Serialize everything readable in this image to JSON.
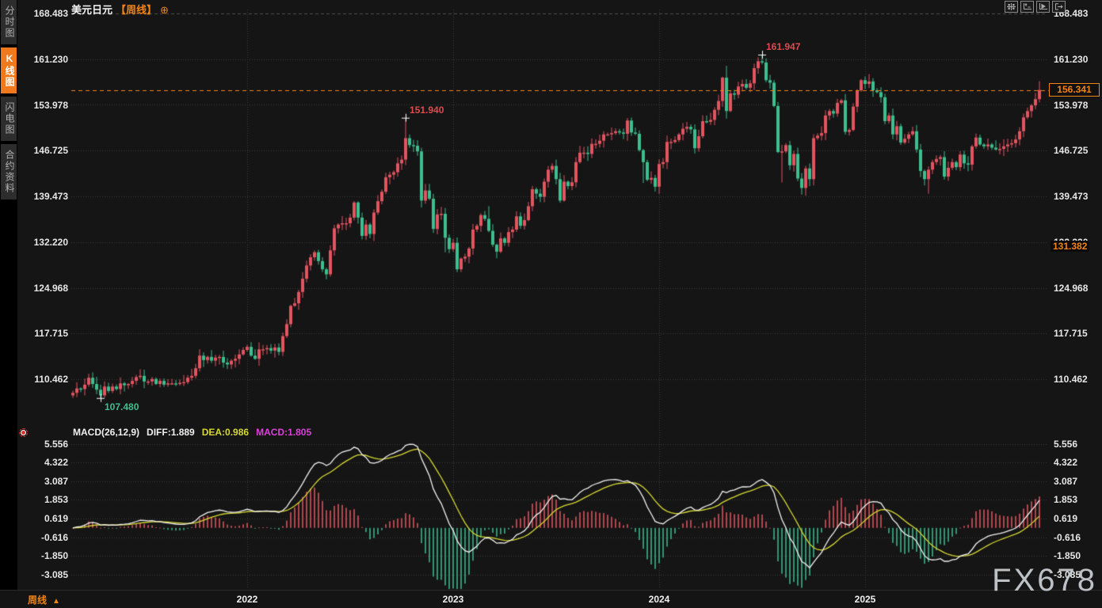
{
  "sidebar": {
    "tabs": [
      {
        "label": "分时图",
        "active": false
      },
      {
        "label": "K线图",
        "active": true
      },
      {
        "label": "闪电图",
        "active": false
      },
      {
        "label": "合约资料",
        "active": false
      }
    ]
  },
  "header": {
    "symbol": "美元日元",
    "period_tag": "【周线】",
    "add_icon": "⊕"
  },
  "toolbar": {
    "icons": [
      "pan-tool",
      "axis-zoom-tool",
      "autoscroll-tool",
      "exit-scale-tool"
    ]
  },
  "current_price": {
    "value": "156.341",
    "color": "#f08418"
  },
  "secondary_axis_badge": {
    "value": "131.382",
    "price": 131.382
  },
  "macd_header": {
    "title": "MACD(26,12,9)",
    "diff": "DIFF:1.889",
    "dea": "DEA:0.986",
    "macd": "MACD:1.805"
  },
  "bottom_bar": {
    "period_label": "周线",
    "arrow": "▲"
  },
  "watermark": "FX678",
  "chart_data": {
    "type": "candlestick",
    "title": "美元日元【周线】",
    "symbol": "USD/JPY",
    "period": "weekly",
    "price_axis_labels": [
      "168.483",
      "161.230",
      "153.978",
      "146.725",
      "139.473",
      "132.220",
      "124.968",
      "117.715",
      "110.462"
    ],
    "price_axis_top": 168.483,
    "price_axis_step": 7.2525,
    "current_price": 156.341,
    "colors": {
      "up": "#e25560",
      "down": "#3dbe8e",
      "grid": "#3a3a3a",
      "price_line": "#f08418"
    },
    "x_years": [
      {
        "label": "2022",
        "start_index": 44
      },
      {
        "label": "2023",
        "start_index": 96
      },
      {
        "label": "2024",
        "start_index": 148
      },
      {
        "label": "2025",
        "start_index": 200
      }
    ],
    "closes": [
      108.3,
      109.0,
      108.9,
      109.6,
      110.7,
      109.7,
      108.8,
      107.9,
      109.3,
      108.6,
      109.3,
      108.9,
      109.8,
      109.5,
      109.7,
      110.2,
      110.8,
      111.0,
      110.1,
      110.1,
      110.5,
      109.7,
      110.2,
      109.6,
      109.8,
      109.8,
      109.7,
      109.9,
      110.0,
      110.7,
      111.0,
      112.2,
      114.2,
      113.5,
      114.0,
      113.4,
      113.9,
      114.0,
      113.1,
      112.8,
      113.4,
      113.7,
      114.4,
      115.1,
      115.6,
      114.2,
      113.7,
      115.2,
      115.2,
      115.4,
      115.0,
      115.5,
      114.8,
      117.3,
      119.2,
      122.1,
      122.5,
      124.3,
      126.4,
      128.5,
      129.8,
      130.6,
      129.2,
      127.9,
      127.1,
      130.9,
      134.4,
      135.0,
      135.2,
      135.2,
      136.1,
      138.5,
      136.1,
      133.2,
      135.0,
      133.5,
      136.9,
      138.7,
      140.2,
      142.5,
      142.9,
      143.3,
      144.7,
      145.3,
      148.7,
      147.6,
      147.5,
      146.6,
      138.8,
      140.4,
      139.1,
      134.3,
      136.6,
      136.7,
      132.9,
      131.1,
      132.1,
      127.9,
      129.6,
      129.9,
      131.2,
      134.2,
      134.8,
      136.5,
      135.9,
      134.0,
      131.8,
      130.7,
      132.8,
      132.1,
      133.8,
      134.2,
      136.3,
      134.8,
      135.7,
      137.9,
      140.6,
      139.9,
      139.4,
      141.8,
      143.7,
      144.3,
      142.2,
      138.8,
      141.8,
      141.1,
      141.7,
      144.9,
      146.4,
      146.4,
      146.2,
      147.8,
      147.8,
      148.3,
      149.3,
      149.3,
      149.5,
      149.8,
      149.6,
      149.4,
      151.5,
      149.6,
      149.4,
      146.8,
      144.9,
      142.1,
      142.4,
      141.0,
      144.6,
      144.9,
      148.1,
      148.1,
      148.4,
      149.3,
      150.2,
      150.5,
      150.1,
      147.1,
      149.0,
      151.4,
      151.3,
      151.6,
      153.2,
      154.6,
      158.3,
      153.0,
      155.8,
      155.6,
      156.9,
      157.3,
      156.7,
      157.4,
      159.8,
      160.9,
      160.7,
      157.9,
      157.5,
      153.8,
      146.5,
      146.6,
      147.6,
      144.4,
      146.2,
      142.3,
      140.8,
      143.9,
      142.2,
      148.7,
      149.1,
      149.5,
      152.3,
      153.0,
      152.6,
      154.3,
      154.7,
      149.7,
      150.0,
      153.7,
      156.3,
      157.9,
      157.3,
      157.7,
      156.3,
      156.0,
      155.2,
      151.4,
      152.3,
      149.3,
      150.6,
      148.0,
      148.6,
      149.3,
      149.8,
      146.9,
      143.5,
      142.2,
      143.7,
      144.9,
      145.4,
      145.7,
      142.6,
      144.0,
      144.9,
      144.1,
      146.1,
      144.7,
      144.5,
      147.4,
      148.8,
      147.7,
      147.4,
      147.7,
      147.2,
      146.9,
      147.0,
      147.4,
      147.7,
      147.9,
      148.5,
      149.8,
      152.0,
      153.0,
      153.9,
      154.9,
      156.341
    ],
    "wick_overrides": {
      "7": {
        "l": 107.48
      },
      "84": {
        "h": 151.94
      },
      "88": {
        "l": 137.7
      },
      "94": {
        "l": 130.6
      },
      "97": {
        "l": 127.46
      },
      "105": {
        "h": 137.91
      },
      "107": {
        "l": 129.64
      },
      "140": {
        "h": 151.9
      },
      "144": {
        "l": 141.6
      },
      "147": {
        "l": 140.25
      },
      "164": {
        "h": 158.44
      },
      "165": {
        "h": 160.17,
        "l": 151.8
      },
      "174": {
        "h": 161.947
      },
      "179": {
        "l": 141.68
      },
      "185": {
        "l": 139.58
      },
      "199": {
        "h": 158.08
      },
      "201": {
        "h": 158.87
      },
      "216": {
        "l": 139.89
      },
      "244": {
        "h": 157.75
      }
    },
    "markers": [
      {
        "index": 7,
        "price": 107.48,
        "text": "107.480",
        "color": "#3dbe8e",
        "side": "low"
      },
      {
        "index": 84,
        "price": 151.94,
        "text": "151.940",
        "color": "#dd4b50",
        "side": "high"
      },
      {
        "index": 174,
        "price": 161.947,
        "text": "161.947",
        "color": "#dd4b50",
        "side": "high"
      }
    ],
    "indicator": {
      "type": "macd",
      "params": [
        26,
        12,
        9
      ],
      "latest": {
        "diff": 1.889,
        "dea": 0.986,
        "macd": 1.805
      },
      "histogram_scale": 2,
      "axis_labels": [
        "5.556",
        "4.322",
        "3.087",
        "1.853",
        "0.619",
        "-0.616",
        "-1.850",
        "-3.085"
      ],
      "colors": {
        "diff_line": "#f2f2f2",
        "dea_line": "#d6d832",
        "hist_up": "#e25560",
        "hist_down": "#3dbe8e"
      }
    }
  }
}
